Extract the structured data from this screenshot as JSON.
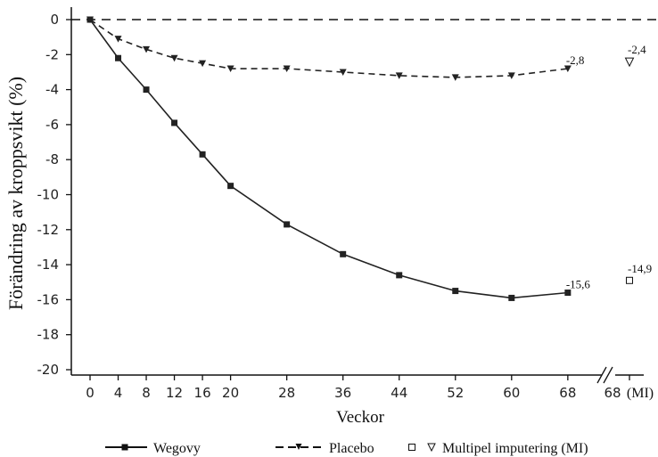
{
  "chart_data": {
    "type": "line",
    "ylabel": "Förändring av kroppsvikt (%)",
    "xlabel": "Veckor",
    "ylim": [
      -20,
      0
    ],
    "yticks": [
      0,
      -2,
      -4,
      -6,
      -8,
      -10,
      -12,
      -14,
      -16,
      -18,
      -20
    ],
    "xticks": [
      0,
      4,
      8,
      12,
      16,
      20,
      28,
      36,
      44,
      52,
      60,
      68
    ],
    "xtick_labels": [
      "0",
      "4",
      "8",
      "12",
      "16",
      "20",
      "28",
      "36",
      "44",
      "52",
      "60",
      "68"
    ],
    "mi_tick_label": "68",
    "mi_tick_suffix": "(MI)",
    "grid": false,
    "reference_line_y": 0,
    "legend_position": "bottom",
    "series": [
      {
        "name": "Wegovy",
        "style": "solid",
        "marker": "square",
        "color": "#222222",
        "x": [
          0,
          4,
          8,
          12,
          16,
          20,
          28,
          36,
          44,
          52,
          60,
          68
        ],
        "values": [
          0,
          -2.2,
          -4.0,
          -5.9,
          -7.7,
          -9.5,
          -11.7,
          -13.4,
          -14.6,
          -15.5,
          -15.9,
          -15.6
        ],
        "end_label": "-15,6"
      },
      {
        "name": "Placebo",
        "style": "dashed",
        "marker": "triangle-down",
        "color": "#222222",
        "x": [
          0,
          4,
          8,
          12,
          16,
          20,
          28,
          36,
          44,
          52,
          60,
          68
        ],
        "values": [
          0,
          -1.1,
          -1.7,
          -2.2,
          -2.5,
          -2.8,
          -2.8,
          -3.0,
          -3.2,
          -3.3,
          -3.2,
          -2.8
        ],
        "end_label": "-2,8"
      }
    ],
    "mi_points": [
      {
        "marker": "open-square",
        "value": -14.9,
        "label": "-14,9"
      },
      {
        "marker": "open-triangle-down",
        "value": -2.4,
        "label": "-2,4"
      }
    ],
    "legend": {
      "wegovy": "Wegovy",
      "placebo": "Placebo",
      "mi": "Multipel imputering (MI)"
    }
  }
}
